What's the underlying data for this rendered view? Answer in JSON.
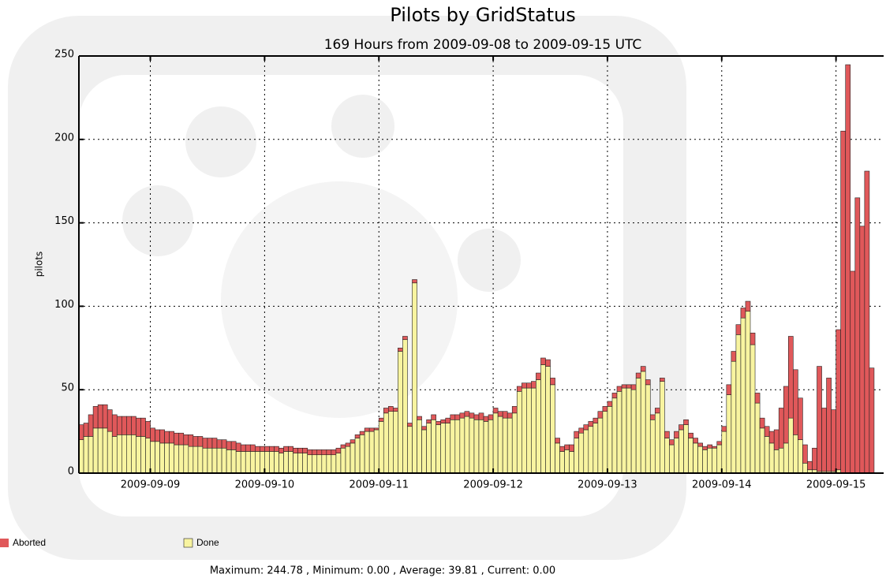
{
  "chart_data": {
    "type": "stacked-bar",
    "title": "Pilots by GridStatus",
    "subtitle": "169 Hours from 2009-09-08 to 2009-09-15 UTC",
    "y_label": "pilots",
    "footer": "Maximum: 244.78 , Minimum: 0.00 , Average: 39.81 , Current: 0.00",
    "categories": [
      null,
      null,
      null,
      null,
      null,
      null,
      null,
      null,
      null,
      null,
      null,
      null,
      null,
      null,
      null,
      "2009-09-09",
      null,
      null,
      null,
      null,
      null,
      null,
      null,
      null,
      null,
      null,
      null,
      null,
      null,
      null,
      null,
      null,
      null,
      null,
      null,
      null,
      null,
      null,
      null,
      "2009-09-10",
      null,
      null,
      null,
      null,
      null,
      null,
      null,
      null,
      null,
      null,
      null,
      null,
      null,
      null,
      null,
      null,
      null,
      null,
      null,
      null,
      null,
      null,
      null,
      "2009-09-11",
      null,
      null,
      null,
      null,
      null,
      null,
      null,
      null,
      null,
      null,
      null,
      null,
      null,
      null,
      null,
      null,
      null,
      null,
      null,
      null,
      null,
      null,
      null,
      "2009-09-12",
      null,
      null,
      null,
      null,
      null,
      null,
      null,
      null,
      null,
      null,
      null,
      null,
      null,
      null,
      null,
      null,
      null,
      null,
      null,
      null,
      null,
      null,
      null,
      "2009-09-13",
      null,
      null,
      null,
      null,
      null,
      null,
      null,
      null,
      null,
      null,
      null,
      null,
      null,
      null,
      null,
      null,
      null,
      null,
      null,
      null,
      null,
      null,
      null,
      "2009-09-14",
      null,
      null,
      null,
      null,
      null,
      null,
      null,
      null,
      null,
      null,
      null,
      null,
      null,
      null,
      null,
      null,
      null,
      null,
      null,
      null,
      null,
      null,
      null,
      "2009-09-15",
      null,
      null,
      null,
      null,
      null,
      null,
      null,
      null,
      null
    ],
    "series": [
      {
        "name": "Aborted",
        "color": "#e0585a",
        "values": [
          9,
          8,
          13,
          13,
          14,
          14,
          13,
          13,
          11,
          11,
          11,
          11,
          11,
          11,
          10,
          8,
          7,
          8,
          7,
          7,
          7,
          7,
          6,
          7,
          6,
          6,
          6,
          6,
          6,
          5,
          5,
          5,
          5,
          5,
          4,
          4,
          4,
          3,
          3,
          3,
          3,
          3,
          3,
          3,
          3,
          3,
          3,
          3,
          3,
          3,
          3,
          3,
          3,
          3,
          3,
          2,
          2,
          2,
          2,
          2,
          2,
          2,
          1,
          2,
          3,
          3,
          2,
          2,
          2,
          2,
          2,
          2,
          2,
          2,
          3,
          2,
          2,
          3,
          3,
          3,
          3,
          3,
          3,
          3,
          4,
          3,
          3,
          3,
          3,
          4,
          3,
          4,
          3,
          3,
          3,
          4,
          4,
          4,
          4,
          4,
          3,
          3,
          3,
          4,
          4,
          3,
          3,
          3,
          3,
          4,
          3,
          3,
          3,
          3,
          2,
          2,
          3,
          3,
          3,
          3,
          3,
          3,
          2,
          4,
          3,
          4,
          3,
          3,
          3,
          3,
          2,
          2,
          2,
          1,
          2,
          3,
          6,
          6,
          6,
          6,
          6,
          7,
          6,
          6,
          6,
          7,
          12,
          24,
          34,
          49,
          39,
          25,
          11,
          5,
          13,
          63,
          38,
          56,
          37,
          84,
          205,
          244.78,
          121,
          165,
          148,
          181,
          63,
          0,
          0
        ]
      },
      {
        "name": "Done",
        "color": "#f8f4a0",
        "values": [
          20,
          22,
          22,
          27,
          27,
          27,
          25,
          22,
          23,
          23,
          23,
          23,
          22,
          22,
          21,
          19,
          19,
          18,
          18,
          18,
          17,
          17,
          17,
          16,
          16,
          16,
          15,
          15,
          15,
          15,
          15,
          14,
          14,
          13,
          13,
          13,
          13,
          13,
          13,
          13,
          13,
          13,
          12,
          13,
          13,
          12,
          12,
          12,
          11,
          11,
          11,
          11,
          11,
          11,
          12,
          15,
          16,
          18,
          21,
          23,
          25,
          25,
          26,
          31,
          36,
          37,
          37,
          73,
          80,
          28,
          114,
          32,
          26,
          30,
          32,
          29,
          30,
          30,
          32,
          32,
          33,
          34,
          33,
          32,
          32,
          31,
          32,
          36,
          34,
          33,
          33,
          36,
          49,
          51,
          51,
          51,
          56,
          65,
          64,
          53,
          18,
          13,
          14,
          13,
          21,
          24,
          26,
          28,
          30,
          33,
          37,
          40,
          45,
          49,
          51,
          51,
          50,
          57,
          61,
          53,
          32,
          36,
          55,
          21,
          17,
          21,
          26,
          29,
          21,
          18,
          16,
          14,
          15,
          15,
          17,
          25,
          47,
          67,
          83,
          93,
          97,
          77,
          42,
          27,
          22,
          18,
          14,
          15,
          18,
          33,
          23,
          20,
          6,
          2,
          2,
          1,
          1,
          1,
          1,
          2,
          0,
          0,
          0,
          0,
          0,
          0,
          0,
          0,
          0
        ]
      }
    ],
    "ylim": [
      0,
      250
    ],
    "yticks": [
      0,
      50,
      100,
      150,
      200,
      250
    ],
    "grid": true
  }
}
